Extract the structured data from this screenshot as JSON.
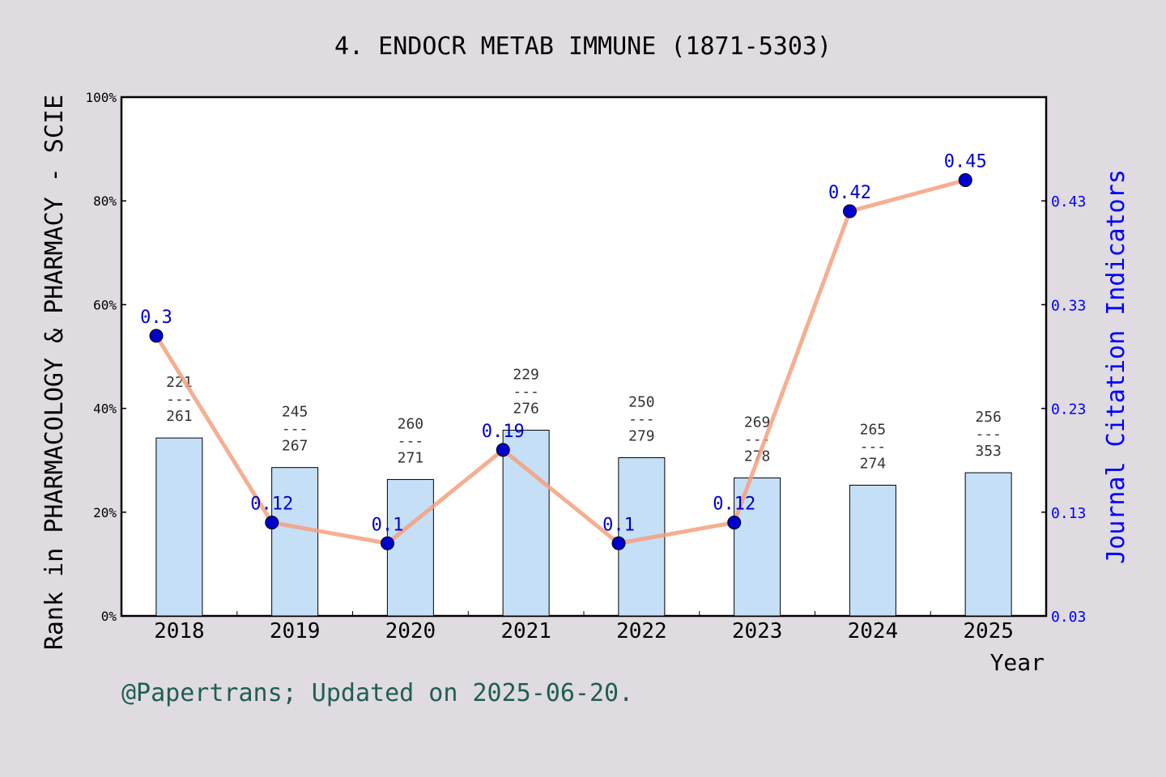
{
  "title": "4. ENDOCR METAB IMMUNE (1871-5303)",
  "footer": "@Papertrans; Updated on 2025-06-20.",
  "chart_data": {
    "type": "bar+line",
    "xlabel": "Year",
    "ylabel_left": "Rank in PHARMACOLOGY & PHARMACY - SCIE",
    "ylabel_right": "Journal Citation Indicators",
    "categories": [
      "2018",
      "2019",
      "2020",
      "2021",
      "2022",
      "2023",
      "2024",
      "2025"
    ],
    "left_axis": {
      "ylim": [
        0,
        100
      ],
      "ticks": [
        0,
        20,
        40,
        60,
        80,
        100
      ],
      "tick_labels": [
        "0%",
        "20%",
        "40%",
        "60%",
        "80%",
        "100%"
      ]
    },
    "right_axis": {
      "ylim": [
        0.03,
        0.53
      ],
      "ticks": [
        0.03,
        0.13,
        0.23,
        0.33,
        0.43
      ],
      "tick_labels": [
        "0.03",
        "0.13",
        "0.23",
        "0.33",
        "0.43"
      ]
    },
    "bars": {
      "rank": [
        221,
        245,
        260,
        229,
        250,
        269,
        265,
        256
      ],
      "total": [
        261,
        267,
        271,
        276,
        279,
        278,
        274,
        353
      ],
      "separator": "---",
      "values_percent": [
        34.3,
        28.6,
        26.3,
        35.8,
        30.5,
        26.6,
        25.2,
        27.6
      ],
      "color": "#c5dff7"
    },
    "line": {
      "values": [
        0.3,
        0.12,
        0.1,
        0.19,
        0.1,
        0.12,
        0.42,
        0.45
      ],
      "labels": [
        "0.3",
        "0.12",
        "0.1",
        "0.19",
        "0.1",
        "0.12",
        "0.42",
        "0.45"
      ],
      "y_on_right_axis": [
        0.3,
        0.12,
        0.1,
        0.19,
        0.1,
        0.12,
        0.42,
        0.45
      ],
      "line_color": "#f5a07e",
      "marker_color": "#0000cc"
    },
    "grid": false,
    "legend": "none"
  }
}
